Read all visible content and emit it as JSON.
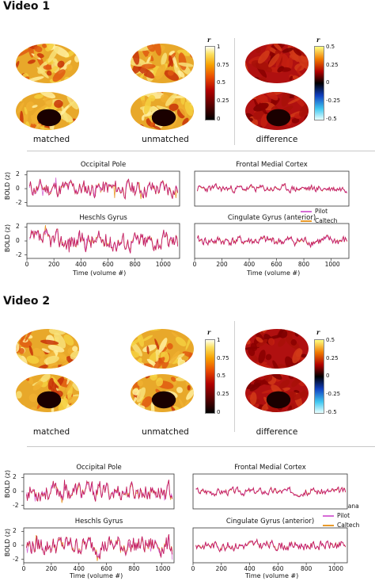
{
  "video1": {
    "title": "Video 1",
    "brain_labels": [
      "matched",
      "unmatched",
      "difference"
    ],
    "colorbar_r_label": "r",
    "colorbar_seq_ticks": [
      "1",
      "0.75",
      "0.5",
      "0.25",
      "0"
    ],
    "colorbar_div_ticks": [
      "0.5",
      "0.25",
      "0",
      "-0.25",
      "-0.5"
    ],
    "ylabel_top": "BOLD (z)",
    "ylabel_bottom": "BOLD (z)",
    "xlabel_left": "Time (volume #)",
    "xlabel_right": "Time (volume #)"
  },
  "video2": {
    "title": "Video 2",
    "brain_labels": [
      "matched",
      "unmatched",
      "difference"
    ],
    "colorbar_r_label": "r",
    "colorbar_seq_ticks": [
      "1",
      "0.75",
      "0.5",
      "0.25",
      "0"
    ],
    "colorbar_div_ticks": [
      "0.5",
      "0.25",
      "0",
      "-0.25",
      "-0.5"
    ],
    "ylabel_top": "BOLD (z)",
    "ylabel_bottom": "BOLD (z)",
    "xlabel_left": "Time (volume #)",
    "xlabel_right": "Time (volume #)"
  },
  "legend": {
    "entries": [
      "Indiana",
      "Pilot",
      "Caltech"
    ],
    "colors": [
      "#c2185b",
      "#d66bd6",
      "#e89a2a"
    ]
  },
  "chart_data": [
    {
      "type": "line",
      "group": "Video 1",
      "title": "Occipital Pole",
      "ylabel": "BOLD (z)",
      "xlim": [
        0,
        1130
      ],
      "ylim": [
        -2.5,
        2.5
      ],
      "yticks": [
        "2",
        "0",
        "-2"
      ],
      "xticks": [],
      "series": [
        {
          "name": "Indiana"
        },
        {
          "name": "Pilot"
        },
        {
          "name": "Caltech"
        }
      ],
      "amplitude": 0.8,
      "seed": 11
    },
    {
      "type": "line",
      "group": "Video 1",
      "title": "Frontal Medial Cortex",
      "ylabel": "",
      "xlim": [
        0,
        1130
      ],
      "ylim": [
        -2.5,
        2.5
      ],
      "yticks": [],
      "xticks": [],
      "series": [
        {
          "name": "Indiana"
        },
        {
          "name": "Pilot"
        },
        {
          "name": "Caltech"
        }
      ],
      "amplitude": 0.35,
      "seed": 23
    },
    {
      "type": "line",
      "group": "Video 1",
      "title": "Heschls Gyrus",
      "ylabel": "BOLD (z)",
      "xlabel": "Time (volume #)",
      "xlim": [
        0,
        1130
      ],
      "ylim": [
        -2.5,
        2.5
      ],
      "yticks": [
        "2",
        "0",
        "-2"
      ],
      "xticks": [
        "0",
        "200",
        "400",
        "600",
        "800",
        "1000"
      ],
      "series": [
        {
          "name": "Indiana"
        },
        {
          "name": "Pilot"
        },
        {
          "name": "Caltech"
        }
      ],
      "amplitude": 0.9,
      "seed": 37
    },
    {
      "type": "line",
      "group": "Video 1",
      "title": "Cingulate Gyrus (anterior)",
      "ylabel": "",
      "xlabel": "Time (volume #)",
      "xlim": [
        0,
        1130
      ],
      "ylim": [
        -2.5,
        2.5
      ],
      "yticks": [],
      "xticks": [
        "0",
        "200",
        "400",
        "600",
        "800",
        "1000"
      ],
      "series": [
        {
          "name": "Indiana"
        },
        {
          "name": "Pilot"
        },
        {
          "name": "Caltech"
        }
      ],
      "amplitude": 0.45,
      "seed": 41
    },
    {
      "type": "line",
      "group": "Video 2",
      "title": "Occipital Pole",
      "ylabel": "BOLD (z)",
      "xlim": [
        0,
        1090
      ],
      "ylim": [
        -2.5,
        2.5
      ],
      "yticks": [
        "2",
        "0",
        "-2"
      ],
      "xticks": [],
      "series": [
        {
          "name": "Indiana"
        },
        {
          "name": "Pilot"
        },
        {
          "name": "Caltech"
        }
      ],
      "amplitude": 0.85,
      "seed": 53
    },
    {
      "type": "line",
      "group": "Video 2",
      "title": "Frontal Medial Cortex",
      "ylabel": "",
      "xlim": [
        0,
        1090
      ],
      "ylim": [
        -2.5,
        2.5
      ],
      "yticks": [],
      "xticks": [],
      "series": [
        {
          "name": "Indiana"
        },
        {
          "name": "Pilot"
        },
        {
          "name": "Caltech"
        }
      ],
      "amplitude": 0.35,
      "seed": 67
    },
    {
      "type": "line",
      "group": "Video 2",
      "title": "Heschls Gyrus",
      "ylabel": "BOLD (z)",
      "xlabel": "Time (volume #)",
      "xlim": [
        0,
        1090
      ],
      "ylim": [
        -2.5,
        2.5
      ],
      "yticks": [
        "2",
        "0",
        "-2"
      ],
      "xticks": [
        "0",
        "200",
        "400",
        "600",
        "800",
        "1000"
      ],
      "series": [
        {
          "name": "Indiana"
        },
        {
          "name": "Pilot"
        },
        {
          "name": "Caltech"
        }
      ],
      "amplitude": 0.9,
      "seed": 79
    },
    {
      "type": "line",
      "group": "Video 2",
      "title": "Cingulate Gyrus (anterior)",
      "ylabel": "",
      "xlabel": "Time (volume #)",
      "xlim": [
        0,
        1090
      ],
      "ylim": [
        -2.5,
        2.5
      ],
      "yticks": [],
      "xticks": [
        "0",
        "200",
        "400",
        "600",
        "800",
        "1000"
      ],
      "series": [
        {
          "name": "Indiana"
        },
        {
          "name": "Pilot"
        },
        {
          "name": "Caltech"
        }
      ],
      "amplitude": 0.45,
      "seed": 83
    }
  ]
}
